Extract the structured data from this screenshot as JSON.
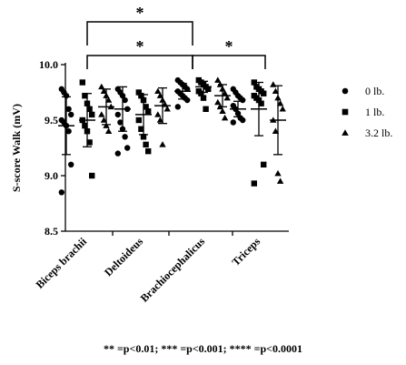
{
  "chart_data": {
    "type": "scatter",
    "ylabel": "S-score Walk (mV)",
    "ylim": [
      8.5,
      10.0
    ],
    "yticks": [
      "8.5",
      "9.0",
      "9.5",
      "10.0"
    ],
    "categories": [
      "Biceps brachii",
      "Deltoideus",
      "Brachiocephalicus",
      "Triceps"
    ],
    "legend_position": "right",
    "series": [
      {
        "name": "0 lb.",
        "marker": "circle",
        "points": [
          [
            9.78,
            9.75,
            9.72,
            9.6,
            9.55,
            9.5,
            9.48,
            9.45,
            9.4,
            9.1,
            8.85
          ],
          [
            9.78,
            9.75,
            9.72,
            9.68,
            9.6,
            9.55,
            9.48,
            9.42,
            9.35,
            9.25,
            9.2
          ],
          [
            9.86,
            9.84,
            9.82,
            9.8,
            9.78,
            9.76,
            9.74,
            9.72,
            9.7,
            9.68,
            9.62
          ],
          [
            9.78,
            9.75,
            9.72,
            9.7,
            9.68,
            9.63,
            9.6,
            9.56,
            9.52,
            9.5,
            9.48
          ]
        ],
        "mean": [
          9.45,
          9.6,
          9.76,
          9.6
        ],
        "sd": [
          0.26,
          0.2,
          0.07,
          0.07
        ]
      },
      {
        "name": "1 lb.",
        "marker": "square",
        "points": [
          [
            9.84,
            9.72,
            9.65,
            9.6,
            9.55,
            9.5,
            9.45,
            9.4,
            9.3,
            9.0
          ],
          [
            9.75,
            9.72,
            9.68,
            9.62,
            9.58,
            9.5,
            9.42,
            9.35,
            9.28,
            9.22
          ],
          [
            9.86,
            9.84,
            9.82,
            9.8,
            9.78,
            9.76,
            9.74,
            9.7,
            9.6
          ],
          [
            9.84,
            9.8,
            9.78,
            9.76,
            9.74,
            9.72,
            9.7,
            9.68,
            9.65,
            9.1,
            8.93
          ]
        ],
        "mean": [
          9.5,
          9.55,
          9.8,
          9.6
        ],
        "sd": [
          0.24,
          0.18,
          0.05,
          0.24
        ]
      },
      {
        "name": "3.2 lb.",
        "marker": "triangle",
        "points": [
          [
            9.8,
            9.76,
            9.72,
            9.68,
            9.62,
            9.55,
            9.5,
            9.45,
            9.4
          ],
          [
            9.76,
            9.72,
            9.68,
            9.64,
            9.6,
            9.55,
            9.5,
            9.28
          ],
          [
            9.86,
            9.82,
            9.78,
            9.74,
            9.7,
            9.66,
            9.62,
            9.58,
            9.52
          ],
          [
            9.82,
            9.76,
            9.7,
            9.65,
            9.6,
            9.5,
            9.4,
            9.02,
            8.95
          ]
        ],
        "mean": [
          9.62,
          9.63,
          9.72,
          9.5
        ],
        "sd": [
          0.16,
          0.16,
          0.1,
          0.31
        ]
      }
    ],
    "significance": [
      {
        "from_category": 0,
        "to_category": 2,
        "label": "*",
        "level": "upper"
      },
      {
        "from_category": 0,
        "to_category": 2,
        "label": "*",
        "level": "lower"
      },
      {
        "from_category": 2,
        "to_category": 3,
        "label": "*",
        "level": "lower"
      }
    ]
  },
  "footnote": "** =p<0.01; *** =p<0.001; **** =p<0.0001"
}
